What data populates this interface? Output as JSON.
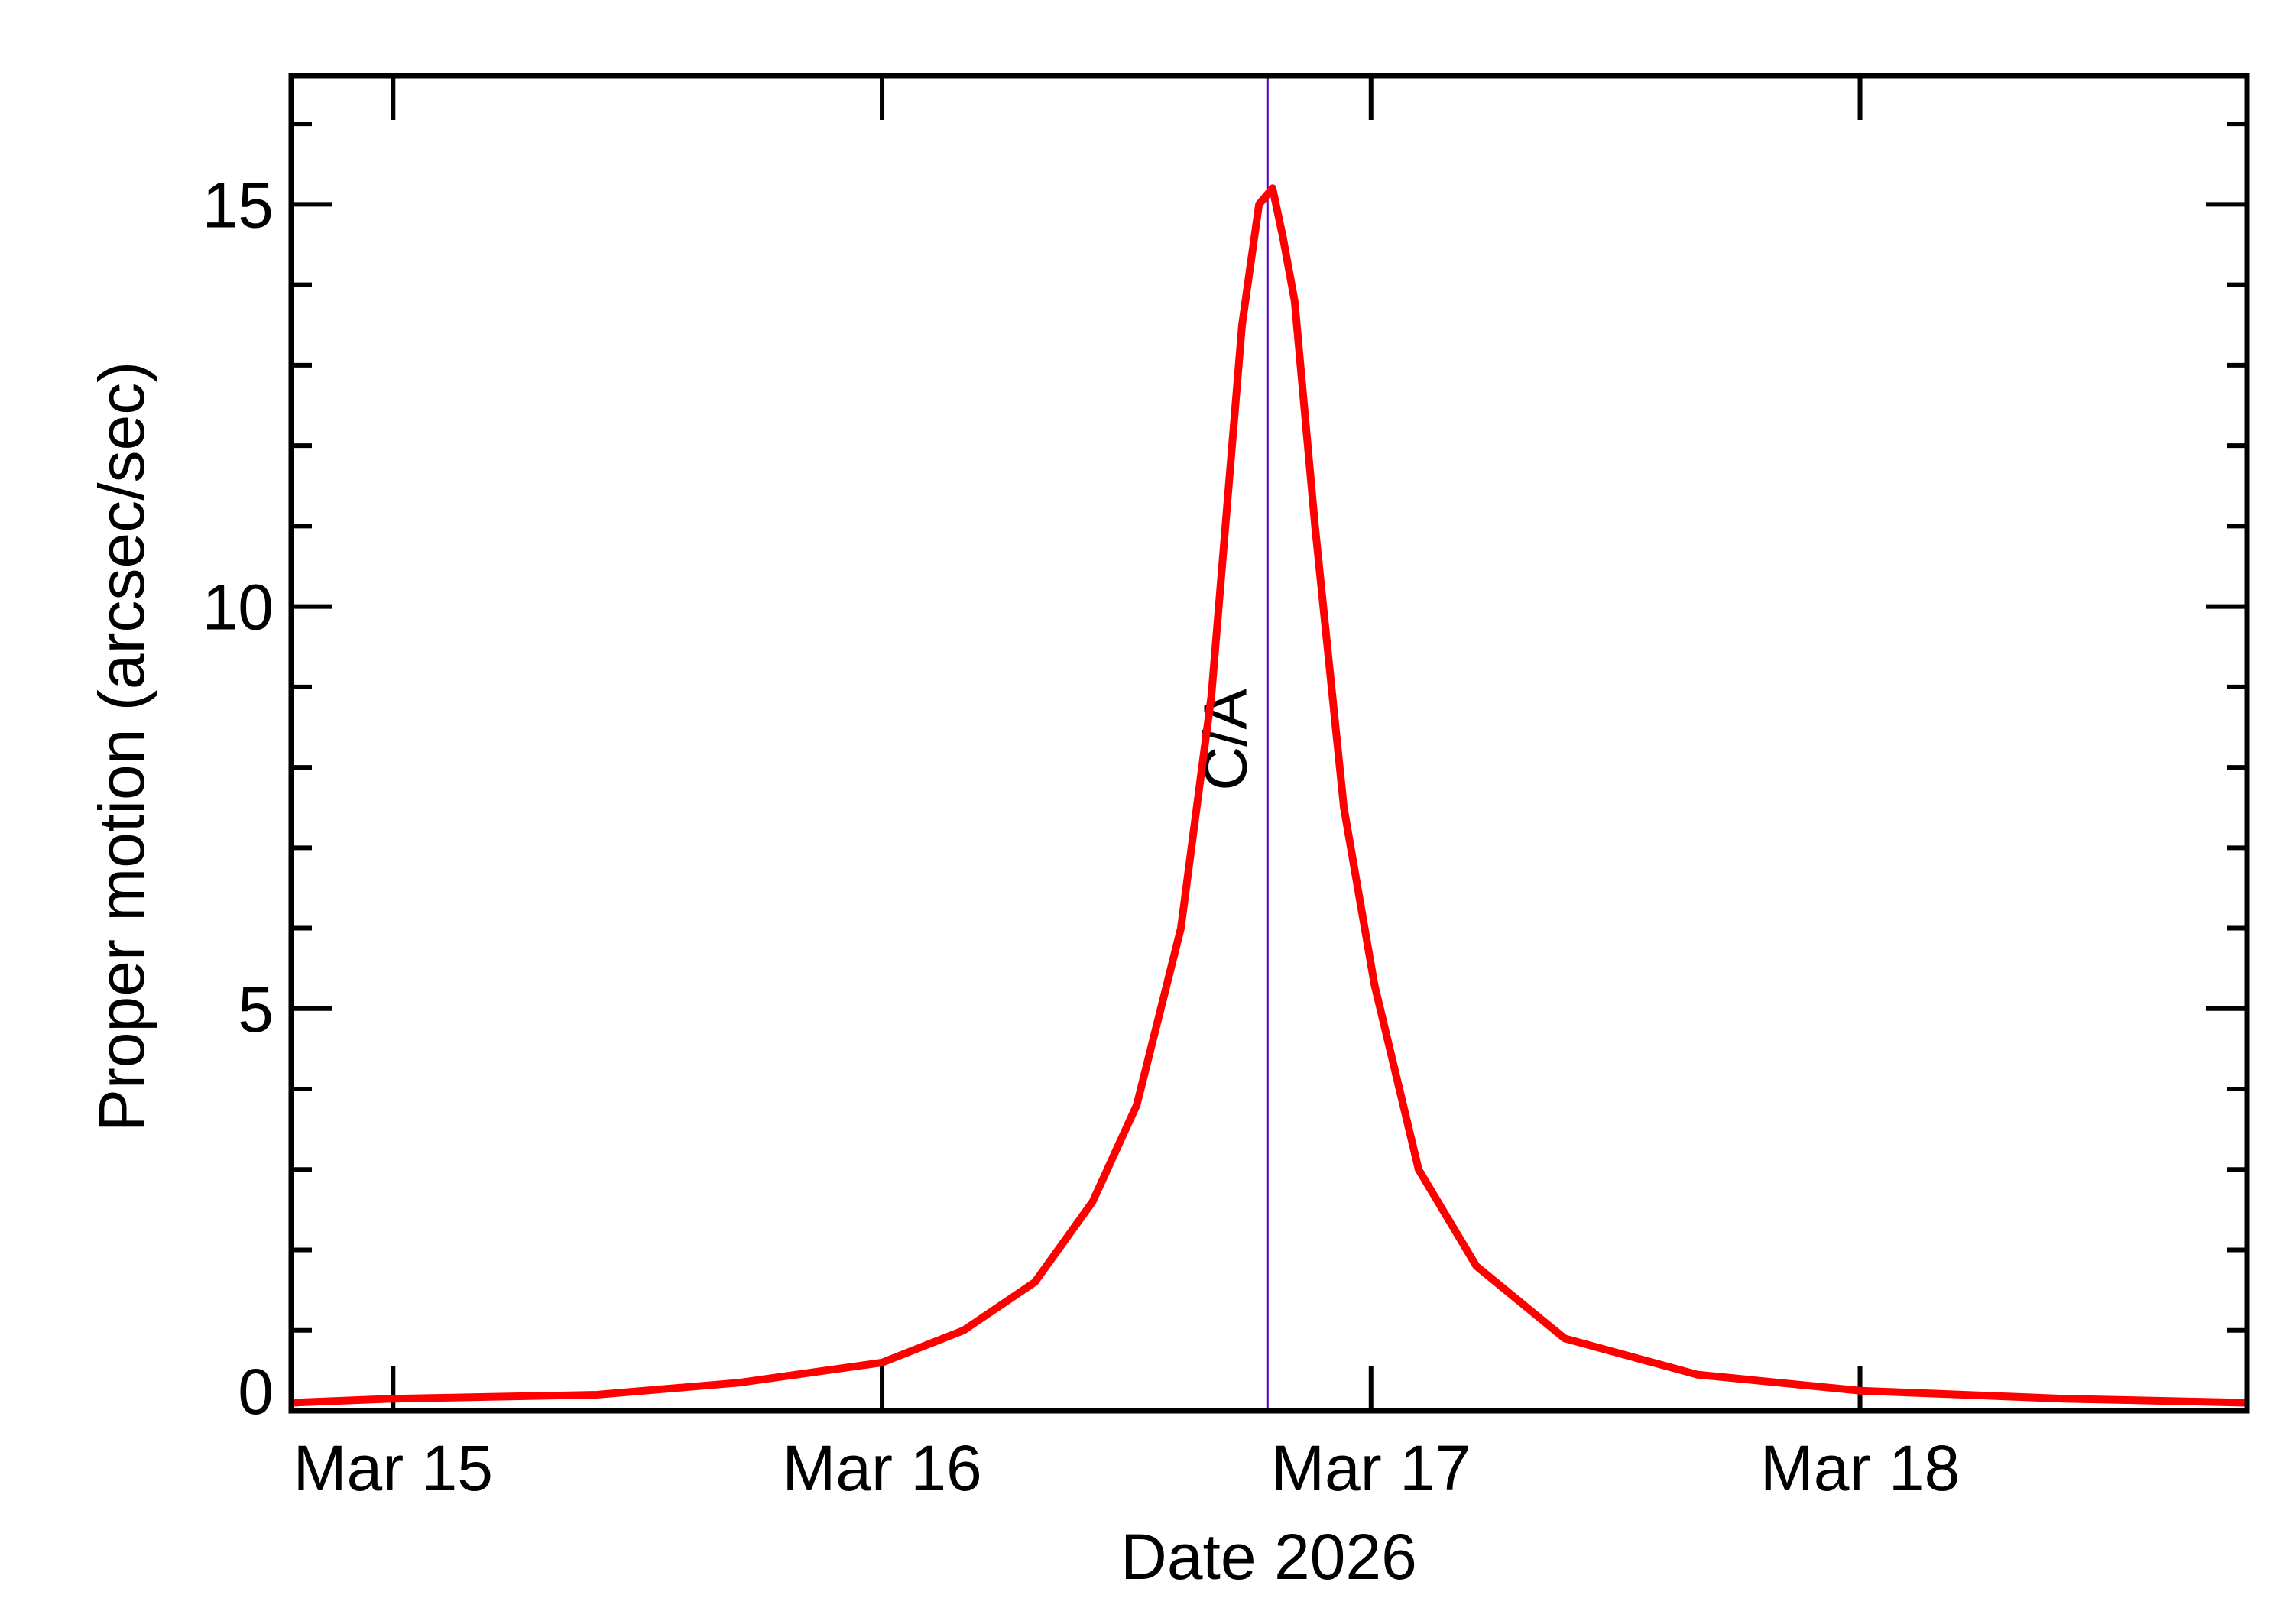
{
  "chart_data": {
    "type": "line",
    "title": "",
    "xlabel": "Date 2026",
    "ylabel": "Proper motion (arcsec/sec)",
    "xlim": [
      "2026-03-14T19:00",
      "2026-03-18T19:00"
    ],
    "ylim": [
      0,
      16.6
    ],
    "grid": false,
    "x_ticks": [
      {
        "label": "Mar 15",
        "date": "2026-03-15T00:00"
      },
      {
        "label": "Mar 16",
        "date": "2026-03-16T00:00"
      },
      {
        "label": "Mar 17",
        "date": "2026-03-17T00:00"
      },
      {
        "label": "Mar 18",
        "date": "2026-03-18T00:00"
      }
    ],
    "y_ticks": [
      {
        "label": "0",
        "value": 0
      },
      {
        "label": "5",
        "value": 5
      },
      {
        "label": "10",
        "value": 10
      },
      {
        "label": "15",
        "value": 15
      }
    ],
    "y_minor_step": 1,
    "series": [
      {
        "color": "#ff0000",
        "points": [
          [
            "2026-03-14T19:00",
            0.1
          ],
          [
            "2026-03-15T00:00",
            0.15
          ],
          [
            "2026-03-15T10:00",
            0.2
          ],
          [
            "2026-03-15T17:00",
            0.35
          ],
          [
            "2026-03-16T00:00",
            0.6
          ],
          [
            "2026-03-16T04:00",
            1.0
          ],
          [
            "2026-03-16T07:30",
            1.6
          ],
          [
            "2026-03-16T10:20",
            2.6
          ],
          [
            "2026-03-16T12:30",
            3.8
          ],
          [
            "2026-03-16T14:40",
            6.0
          ],
          [
            "2026-03-16T16:10",
            8.9
          ],
          [
            "2026-03-16T17:40",
            13.5
          ],
          [
            "2026-03-16T18:30",
            15.0
          ],
          [
            "2026-03-16T19:10",
            15.2
          ],
          [
            "2026-03-16T19:40",
            14.6
          ],
          [
            "2026-03-16T20:15",
            13.8
          ],
          [
            "2026-03-16T21:15",
            11.0
          ],
          [
            "2026-03-16T22:40",
            7.5
          ],
          [
            "2026-03-17T00:10",
            5.3
          ],
          [
            "2026-03-17T02:20",
            3.0
          ],
          [
            "2026-03-17T05:10",
            1.8
          ],
          [
            "2026-03-17T09:30",
            0.9
          ],
          [
            "2026-03-17T16:00",
            0.45
          ],
          [
            "2026-03-18T00:00",
            0.25
          ],
          [
            "2026-03-18T10:00",
            0.15
          ],
          [
            "2026-03-18T19:00",
            0.1
          ]
        ]
      }
    ],
    "annotations": [
      {
        "type": "vline",
        "label": "C/A",
        "date": "2026-03-16T18:55",
        "color": "#5500cc"
      }
    ]
  }
}
